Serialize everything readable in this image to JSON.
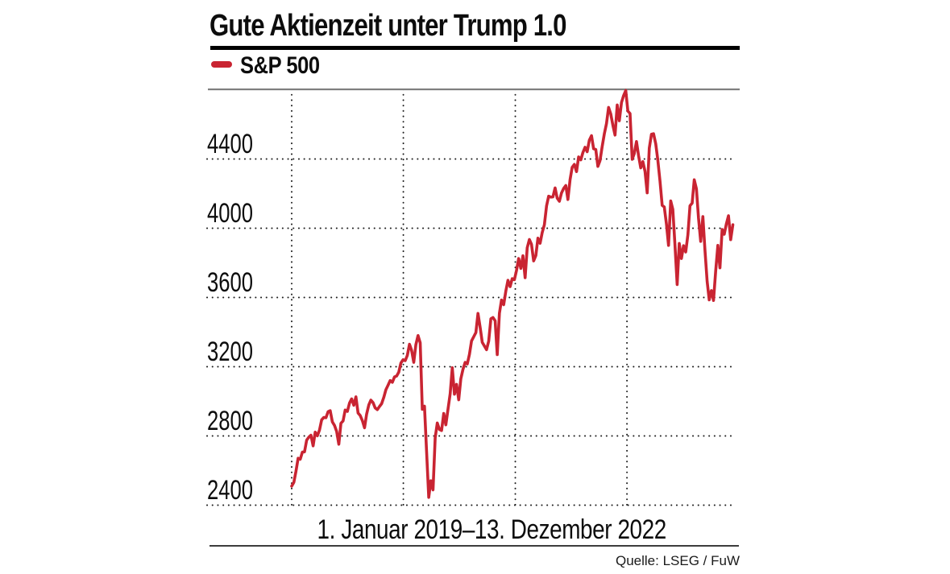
{
  "header": {
    "title": "Gute Aktienzeit unter Trump 1.0"
  },
  "legend": {
    "label": "S&P 500",
    "color": "#c92432"
  },
  "xaxis": {
    "range_label": "1. Januar 2019–13. Dezember 2022"
  },
  "footer": {
    "source": "Quelle: LSEG / FuW"
  },
  "chart_data": {
    "type": "line",
    "title": "Gute Aktienzeit unter Trump 1.0",
    "series_name": "S&P 500",
    "line_color": "#c92432",
    "grid": "dotted",
    "grid_color": "#1c1c1c",
    "plot_top_border_color": "#7f7f7f",
    "x_unit": "days since 2019-01-01",
    "x_range_days": [
      0,
      1442
    ],
    "x_start_label": "1. Januar 2019",
    "x_end_label": "13. Dezember 2022",
    "x_gridline_days": [
      0,
      365,
      731,
      1096
    ],
    "x_gridline_dates": [
      "2019-01-01",
      "2020-01-01",
      "2021-01-01",
      "2022-01-01"
    ],
    "y_ticks": [
      4400,
      4000,
      3600,
      3200,
      2800,
      2400
    ],
    "ylim": [
      2306,
      4802
    ],
    "values": [
      2510,
      2532,
      2596,
      2671,
      2665,
      2707,
      2708,
      2776,
      2793,
      2804,
      2743,
      2822,
      2801,
      2834,
      2893,
      2907,
      2905,
      2940,
      2946,
      2881,
      2860,
      2826,
      2752,
      2873,
      2887,
      2950,
      2942,
      2990,
      3014,
      2977,
      3026,
      2932,
      2918,
      2889,
      2847,
      2926,
      2979,
      3007,
      2992,
      2962,
      2952,
      2970,
      2986,
      3023,
      3067,
      3093,
      3120,
      3110,
      3141,
      3146,
      3169,
      3221,
      3240,
      3235,
      3265,
      3330,
      3295,
      3225,
      3327,
      3380,
      3338,
      2954,
      2972,
      2711,
      2445,
      2541,
      2488,
      2790,
      2875,
      2837,
      2831,
      2930,
      2864,
      2955,
      3044,
      3194,
      3041,
      3098,
      3009,
      3130,
      3185,
      3225,
      3216,
      3271,
      3349,
      3373,
      3397,
      3508,
      3427,
      3341,
      3319,
      3298,
      3348,
      3477,
      3484,
      3465,
      3270,
      3509,
      3585,
      3558,
      3638,
      3699,
      3663,
      3709,
      3703,
      3756,
      3825,
      3768,
      3841,
      3714,
      3887,
      3935,
      3907,
      3811,
      3842,
      3943,
      3913,
      3975,
      4020,
      4129,
      4185,
      4180,
      4181,
      4233,
      4174,
      4156,
      4204,
      4230,
      4247,
      4166,
      4281,
      4352,
      4369,
      4327,
      4412,
      4395,
      4437,
      4468,
      4442,
      4509,
      4535,
      4459,
      4455,
      4357,
      4391,
      4471,
      4545,
      4605,
      4698,
      4660,
      4595,
      4538,
      4712,
      4621,
      4726,
      4766,
      4796,
      4677,
      4663,
      4398,
      4432,
      4501,
      4419,
      4349,
      4385,
      4329,
      4204,
      4463,
      4543,
      4546,
      4488,
      4393,
      4272,
      4132,
      4123,
      4024,
      3901,
      4158,
      4109,
      3901,
      3675,
      3912,
      3825,
      3899,
      3863,
      3962,
      4130,
      4145,
      4280,
      4228,
      4058,
      3924,
      4067,
      3873,
      3693,
      3586,
      3640,
      3583,
      3753,
      3901,
      3771,
      3993,
      3965,
      4026,
      4072,
      3934,
      4020
    ]
  }
}
